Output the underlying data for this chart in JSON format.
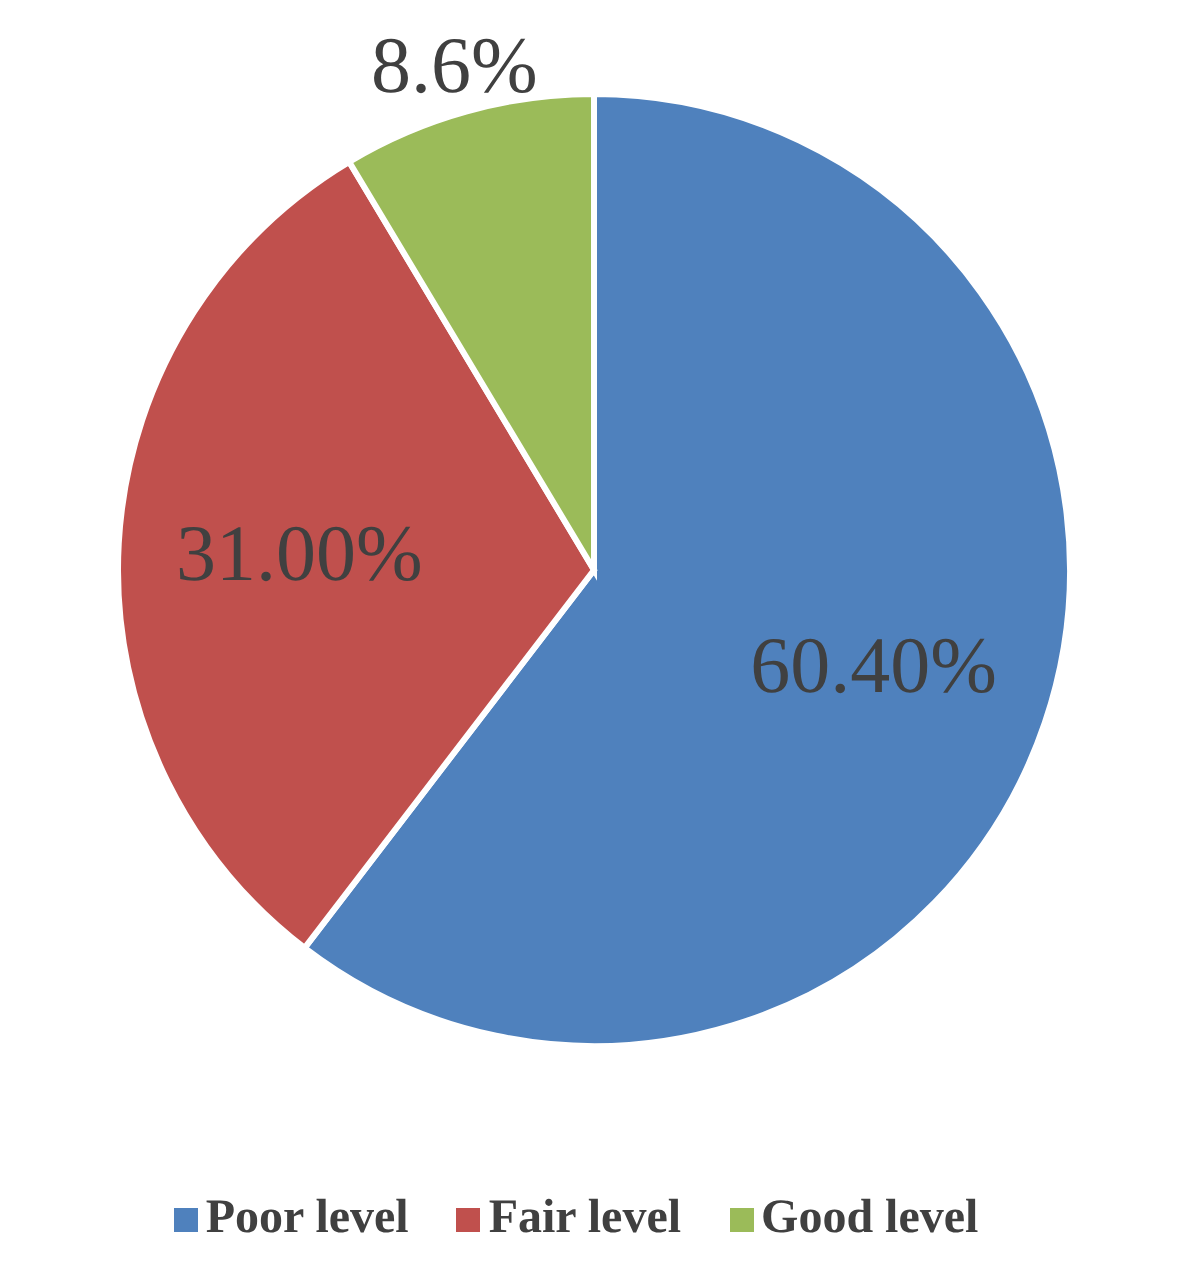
{
  "chart_data": {
    "type": "pie",
    "categories": [
      "Poor level",
      "Fair level",
      "Good level"
    ],
    "values": [
      60.4,
      31.0,
      8.6
    ],
    "colors": [
      "#4f81bd",
      "#c0504d",
      "#9bbb59"
    ],
    "value_labels": [
      "60.40%",
      "31.00%",
      "8.6%"
    ],
    "legend": "bottom"
  }
}
